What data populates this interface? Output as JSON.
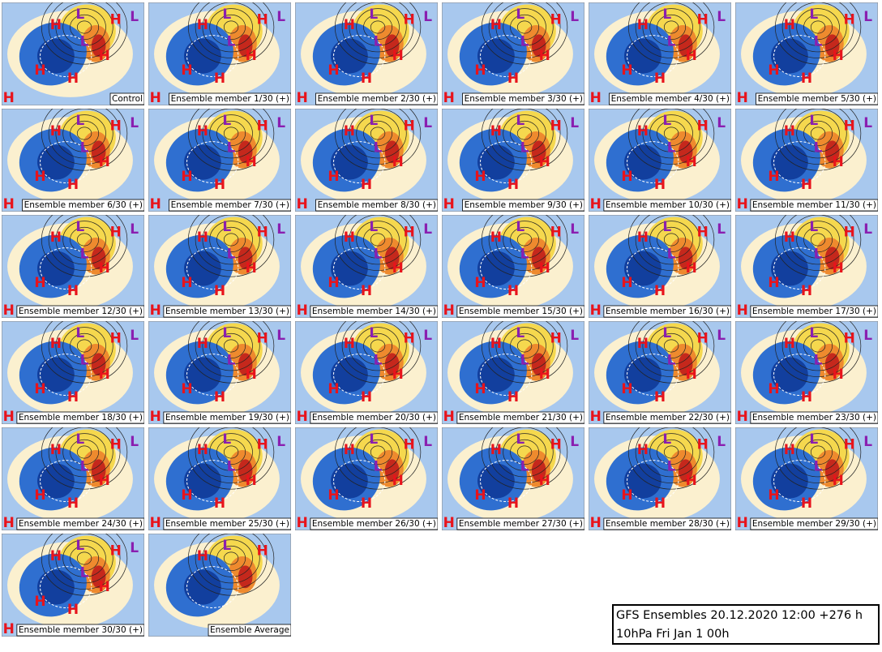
{
  "panels": [
    {
      "label": "Control",
      "markers": [
        "H",
        "L",
        "H",
        "L",
        "L",
        "H",
        "H",
        "H",
        "H"
      ]
    },
    {
      "label": "Ensemble member 1/30 (+)",
      "markers": [
        "H",
        "L",
        "H",
        "L",
        "L",
        "H",
        "H",
        "H",
        "H"
      ]
    },
    {
      "label": "Ensemble member 2/30 (+)",
      "markers": [
        "H",
        "L",
        "H",
        "L",
        "L",
        "H",
        "H",
        "H",
        "H"
      ]
    },
    {
      "label": "Ensemble member 3/30 (+)",
      "markers": [
        "H",
        "L",
        "H",
        "L",
        "L",
        "H",
        "H",
        "H",
        "H"
      ]
    },
    {
      "label": "Ensemble member 4/30 (+)",
      "markers": [
        "H",
        "L",
        "H",
        "L",
        "L",
        "H",
        "H",
        "H",
        "H"
      ]
    },
    {
      "label": "Ensemble member 5/30 (+)",
      "markers": [
        "H",
        "L",
        "H",
        "L",
        "L",
        "H",
        "H",
        "H",
        "H"
      ]
    },
    {
      "label": "Ensemble member 6/30 (+)",
      "markers": [
        "H",
        "L",
        "H",
        "L",
        "L",
        "H",
        "H",
        "H",
        "H"
      ]
    },
    {
      "label": "Ensemble member 7/30 (+)",
      "markers": [
        "H",
        "L",
        "H",
        "L",
        "L",
        "H",
        "H",
        "H",
        "H"
      ]
    },
    {
      "label": "Ensemble member 8/30 (+)",
      "markers": [
        "H",
        "L",
        "H",
        "L",
        "L",
        "H",
        "H",
        "H",
        "H"
      ]
    },
    {
      "label": "Ensemble member 9/30 (+)",
      "markers": [
        "H",
        "L",
        "H",
        "L",
        "L",
        "H",
        "H",
        "H",
        "H"
      ]
    },
    {
      "label": "Ensemble member 10/30 (+)",
      "markers": [
        "H",
        "L",
        "H",
        "L",
        "L",
        "H",
        "H",
        "H",
        "H"
      ]
    },
    {
      "label": "Ensemble member 11/30 (+)",
      "markers": [
        "H",
        "L",
        "H",
        "L",
        "L",
        "H",
        "H",
        "H",
        "H"
      ]
    },
    {
      "label": "Ensemble member 12/30 (+)",
      "markers": [
        "H",
        "L",
        "H",
        "L",
        "L",
        "H",
        "H",
        "H",
        "H"
      ]
    },
    {
      "label": "Ensemble member 13/30 (+)",
      "markers": [
        "H",
        "L",
        "H",
        "L",
        "L",
        "H",
        "H",
        "H",
        "H"
      ]
    },
    {
      "label": "Ensemble member 14/30 (+)",
      "markers": [
        "H",
        "L",
        "H",
        "L",
        "L",
        "H",
        "H",
        "H",
        "H"
      ]
    },
    {
      "label": "Ensemble member 15/30 (+)",
      "markers": [
        "H",
        "L",
        "H",
        "L",
        "L",
        "H",
        "H",
        "H",
        "H"
      ]
    },
    {
      "label": "Ensemble member 16/30 (+)",
      "markers": [
        "H",
        "L",
        "H",
        "L",
        "L",
        "H",
        "H",
        "H",
        "H"
      ]
    },
    {
      "label": "Ensemble member 17/30 (+)",
      "markers": [
        "H",
        "L",
        "H",
        "L",
        "L",
        "H",
        "H",
        "H",
        "H"
      ]
    },
    {
      "label": "Ensemble member 18/30 (+)",
      "markers": [
        "H",
        "L",
        "H",
        "L",
        "L",
        "H",
        "H",
        "H",
        "H"
      ]
    },
    {
      "label": "Ensemble member 19/30 (+)",
      "markers": [
        "H",
        "L",
        "H",
        "L",
        "L",
        "H",
        "H",
        "H",
        "H"
      ]
    },
    {
      "label": "Ensemble member 20/30 (+)",
      "markers": [
        "H",
        "L",
        "H",
        "L",
        "L",
        "H",
        "H",
        "H",
        "H"
      ]
    },
    {
      "label": "Ensemble member 21/30 (+)",
      "markers": [
        "H",
        "L",
        "H",
        "L",
        "L",
        "H",
        "H",
        "H",
        "H"
      ]
    },
    {
      "label": "Ensemble member 22/30 (+)",
      "markers": [
        "H",
        "L",
        "H",
        "L",
        "L",
        "H",
        "H",
        "H",
        "H"
      ]
    },
    {
      "label": "Ensemble member 23/30 (+)",
      "markers": [
        "H",
        "L",
        "H",
        "L",
        "L",
        "H",
        "H",
        "H",
        "H"
      ]
    },
    {
      "label": "Ensemble member 24/30 (+)",
      "markers": [
        "H",
        "L",
        "H",
        "L",
        "L",
        "H",
        "H",
        "H",
        "H"
      ]
    },
    {
      "label": "Ensemble member 25/30 (+)",
      "markers": [
        "H",
        "L",
        "H",
        "L",
        "L",
        "H",
        "H",
        "H",
        "H"
      ]
    },
    {
      "label": "Ensemble member 26/30 (+)",
      "markers": [
        "H",
        "L",
        "H",
        "L",
        "L",
        "H",
        "H",
        "H",
        "H"
      ]
    },
    {
      "label": "Ensemble member 27/30 (+)",
      "markers": [
        "H",
        "L",
        "H",
        "L",
        "L",
        "H",
        "H",
        "H",
        "H"
      ]
    },
    {
      "label": "Ensemble member 28/30 (+)",
      "markers": [
        "H",
        "L",
        "H",
        "L",
        "L",
        "H",
        "H",
        "H",
        "H"
      ]
    },
    {
      "label": "Ensemble member 29/30 (+)",
      "markers": [
        "H",
        "L",
        "H",
        "L",
        "L",
        "H",
        "H",
        "H",
        "H"
      ]
    },
    {
      "label": "Ensemble member 30/30 (+)",
      "markers": [
        "H",
        "L",
        "H",
        "L",
        "L",
        "H",
        "H",
        "H",
        "H"
      ]
    },
    {
      "label": "Ensemble Average",
      "markers": [
        "H",
        "L",
        "H"
      ]
    }
  ],
  "footer": {
    "line1": "GFS Ensembles 20.12.2020 12:00 +276 h",
    "line2": "10hPa Fri Jan 1 00h"
  }
}
